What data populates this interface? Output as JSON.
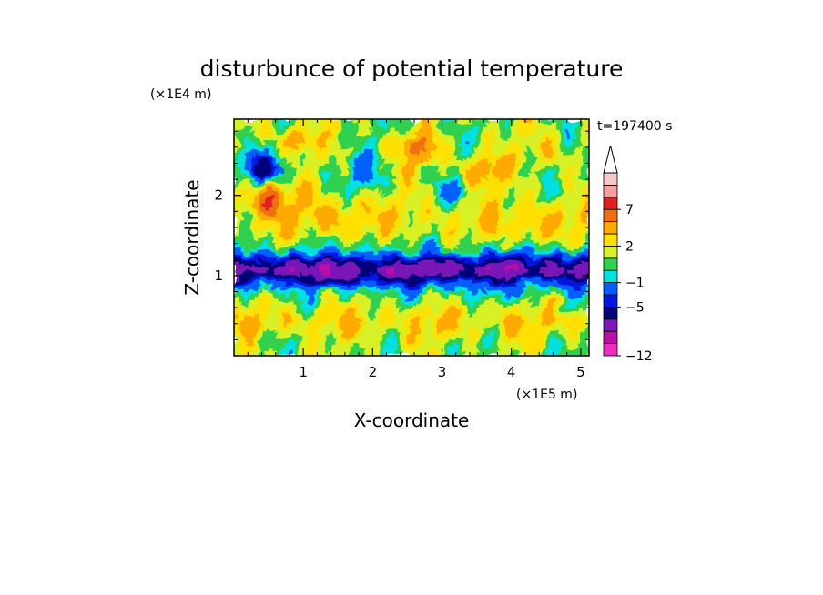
{
  "chart_data": {
    "type": "heatmap",
    "title": "disturbunce of potential temperature",
    "xlabel": "X-coordinate",
    "ylabel": "Z-coordinate",
    "x_scale_label": "(×1E5 m)",
    "y_scale_label": "(×1E4 m)",
    "time_label": "t=197400 s",
    "xlim": [
      0,
      5.12
    ],
    "ylim": [
      0,
      2.95
    ],
    "x_ticks": [
      1,
      2,
      3,
      4,
      5
    ],
    "x_tick_labels": [
      "1",
      "2",
      "3",
      "4",
      "5"
    ],
    "y_ticks": [
      1,
      2
    ],
    "y_tick_labels": [
      "1",
      "2"
    ],
    "colorbar": {
      "levels": [
        -12,
        -11,
        -9,
        -7,
        -5,
        -3,
        -1,
        0,
        1,
        2,
        3,
        5,
        7,
        8,
        9
      ],
      "colors": [
        "#ee2fbe",
        "#bb10a8",
        "#7a19b8",
        "#00007a",
        "#0018e0",
        "#0060ff",
        "#00e0e0",
        "#30d050",
        "#d8f028",
        "#ffe000",
        "#ffaa00",
        "#f07010",
        "#e02020",
        "#f8a0a0",
        "#f8c8c8"
      ],
      "tick_values": [
        -12,
        -5,
        -1,
        2,
        7
      ],
      "tick_labels": [
        "−12",
        "−5",
        "−1",
        "2",
        "7"
      ],
      "extend": "max"
    },
    "features": [
      {
        "x": 0.5,
        "z": 1.95,
        "value": 6
      },
      {
        "x": 0.9,
        "z": 2.7,
        "value": 4
      },
      {
        "x": 2.65,
        "z": 2.6,
        "value": 5
      },
      {
        "x": 3.55,
        "z": 2.3,
        "value": 5
      },
      {
        "x": 4.5,
        "z": 2.55,
        "value": 3
      },
      {
        "x": 0.4,
        "z": 2.35,
        "value": -5
      },
      {
        "x": 1.85,
        "z": 2.25,
        "value": -1
      },
      {
        "x": 3.2,
        "z": 2.05,
        "value": -1
      },
      {
        "x": 1.5,
        "z": 1.7,
        "value": 3
      },
      {
        "x": 4.3,
        "z": 1.6,
        "value": 3
      }
    ]
  }
}
